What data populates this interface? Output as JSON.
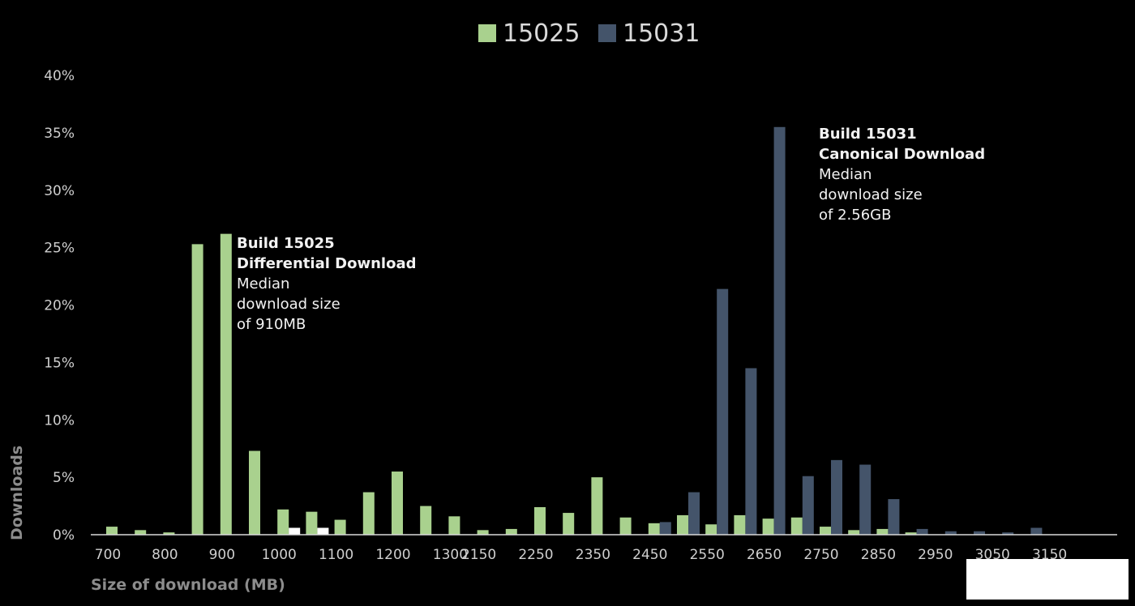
{
  "chart_data": {
    "type": "bar",
    "xlabel": "Size of download (MB)",
    "ylabel": "Downloads",
    "ylim": [
      0,
      40
    ],
    "yticks": [
      "0%",
      "5%",
      "10%",
      "15%",
      "20%",
      "25%",
      "30%",
      "35%",
      "40%"
    ],
    "categories": [
      "700",
      "750",
      "800",
      "850",
      "900",
      "950",
      "1000",
      "1050",
      "1100",
      "1150",
      "1200",
      "1250",
      "1300",
      "2150",
      "2200",
      "2250",
      "2300",
      "2350",
      "2400",
      "2450",
      "2500",
      "2550",
      "2600",
      "2650",
      "2700",
      "2750",
      "2800",
      "2850",
      "2900",
      "2950",
      "3000",
      "3050",
      "3100",
      "3150"
    ],
    "tick_labels": [
      "700",
      "",
      "800",
      "",
      "900",
      "",
      "1000",
      "",
      "1100",
      "",
      "1200",
      "",
      "1300",
      "2150",
      "",
      "2250",
      "",
      "2350",
      "",
      "2450",
      "",
      "2550",
      "",
      "2650",
      "",
      "2750",
      "",
      "2850",
      "",
      "2950",
      "",
      "3050",
      "",
      "3150"
    ],
    "legend_position": "top-center",
    "series": [
      {
        "name": "15025",
        "color": "#a9d18e",
        "values": [
          0.7,
          0.4,
          0.2,
          25.3,
          26.2,
          7.3,
          2.2,
          2.0,
          1.3,
          3.7,
          5.5,
          2.5,
          1.6,
          0.4,
          0.5,
          2.4,
          1.9,
          5.0,
          1.5,
          1.0,
          1.7,
          0.9,
          1.7,
          1.4,
          1.5,
          0.7,
          0.4,
          0.5,
          0.2,
          0,
          0,
          0,
          0,
          0
        ]
      },
      {
        "name": "15031",
        "color": "#44546a",
        "values": [
          0,
          0,
          0,
          0,
          0,
          0,
          0.6,
          0.6,
          0,
          0,
          0,
          0,
          0,
          0,
          0,
          0,
          0,
          0,
          0,
          1.1,
          3.7,
          21.4,
          14.5,
          35.5,
          5.1,
          6.5,
          6.1,
          3.1,
          0.5,
          0.3,
          0.3,
          0.2,
          0.6,
          0
        ]
      }
    ],
    "annotations": [
      {
        "lines": [
          "Build 15025",
          "Differential Download",
          "Median",
          "download size",
          "of 910MB"
        ],
        "bold_lines": 2
      },
      {
        "lines": [
          "Build 15031",
          "Canonical Download",
          "Median",
          "download size",
          "of 2.56GB"
        ],
        "bold_lines": 2
      }
    ]
  }
}
